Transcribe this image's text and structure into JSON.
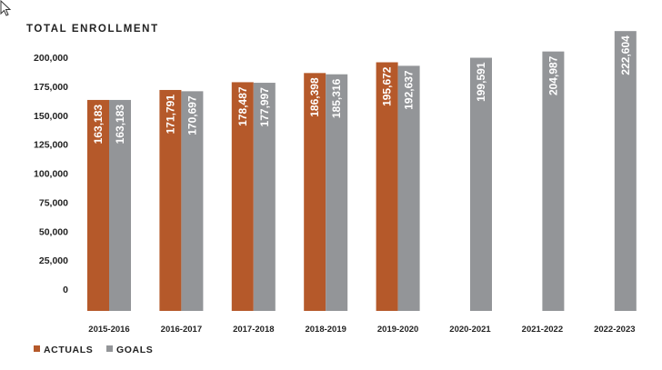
{
  "chart_data": {
    "type": "bar",
    "title": "TOTAL ENROLLMENT",
    "categories": [
      "2015-2016",
      "2016-2017",
      "2017-2018",
      "2018-2019",
      "2019-2020",
      "2020-2021",
      "2021-2022",
      "2022-2023"
    ],
    "series": [
      {
        "name": "ACTUALS",
        "color": "#b5592a",
        "values": [
          163183,
          171791,
          178487,
          186398,
          195672,
          null,
          null,
          null
        ],
        "labels": [
          "163,183",
          "171,791",
          "178,487",
          "186,398",
          "195,672",
          "",
          "",
          ""
        ]
      },
      {
        "name": "GOALS",
        "color": "#939598",
        "values": [
          163183,
          170697,
          177997,
          185316,
          192637,
          199591,
          204987,
          222604
        ],
        "labels": [
          "163,183",
          "170,697",
          "177,997",
          "185,316",
          "192,637",
          "199,591",
          "204,987",
          "222,604"
        ]
      }
    ],
    "yticks": [
      "200,000",
      "175,000",
      "150,000",
      "125,000",
      "100,000",
      "75,000",
      "50,000",
      "25,000",
      "0"
    ],
    "ytick_values": [
      200000,
      175000,
      150000,
      125000,
      100000,
      75000,
      50000,
      25000,
      0
    ],
    "xlabel": "",
    "ylabel": "",
    "legend_position": "bottom-left"
  }
}
